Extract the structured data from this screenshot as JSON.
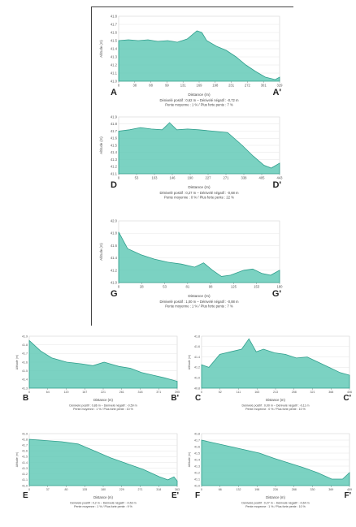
{
  "chart_data": [
    {
      "id": "A",
      "type": "area",
      "start_label": "A",
      "end_label": "A'",
      "xlabel": "Distance (m)",
      "ylabel": "Altitude (m)",
      "ylim": [
        41.0,
        41.8
      ],
      "yticks": [
        "41.8",
        "41.7",
        "41.6",
        "41.5",
        "41.4",
        "41.3",
        "41.2",
        "41.1",
        "41.0"
      ],
      "xticks": [
        "0",
        "38",
        "88",
        "99",
        "131",
        "169",
        "198",
        "231",
        "272",
        "301",
        "329"
      ],
      "x": [
        0,
        20,
        40,
        60,
        80,
        100,
        120,
        140,
        160,
        170,
        180,
        200,
        220,
        240,
        260,
        280,
        300,
        320,
        329
      ],
      "y": [
        41.5,
        41.51,
        41.5,
        41.51,
        41.49,
        41.5,
        41.48,
        41.52,
        41.62,
        41.6,
        41.5,
        41.43,
        41.38,
        41.3,
        41.2,
        41.12,
        41.05,
        41.02,
        41.05
      ],
      "caption_line1": "Dénivelé positif : 0,62 m – Dénivelé négatif : -0,72 m",
      "caption_line2": "Pente moyenne : 1 % / Plus forte pente : 7 %",
      "color": "#5ec8b5"
    },
    {
      "id": "D",
      "type": "area",
      "start_label": "D",
      "end_label": "D'",
      "xlabel": "Distance (m)",
      "ylabel": "Altitude (m)",
      "ylim": [
        41.1,
        41.9
      ],
      "yticks": [
        "41.9",
        "41.8",
        "41.7",
        "41.6",
        "41.5",
        "41.4",
        "41.3",
        "41.2",
        "41.1"
      ],
      "xticks": [
        "0",
        "53",
        "103",
        "146",
        "190",
        "227",
        "271",
        "338",
        "405",
        "443"
      ],
      "x": [
        0,
        30,
        60,
        90,
        120,
        140,
        160,
        190,
        220,
        260,
        300,
        340,
        370,
        400,
        420,
        443
      ],
      "y": [
        41.7,
        41.72,
        41.75,
        41.73,
        41.72,
        41.82,
        41.72,
        41.73,
        41.72,
        41.7,
        41.68,
        41.5,
        41.35,
        41.22,
        41.18,
        41.25
      ],
      "caption_line1": "Dénivelé positif : 0,27 m – Dénivelé négatif : -0,68 m",
      "caption_line2": "Pente moyenne : 0 % / Plus forte pente : 22 %",
      "color": "#5ec8b5"
    },
    {
      "id": "G",
      "type": "area",
      "start_label": "G",
      "end_label": "G'",
      "xlabel": "Distance (m)",
      "ylabel": "Altitude (m)",
      "ylim": [
        41.0,
        42.0
      ],
      "yticks": [
        "42.0",
        "41.8",
        "41.6",
        "41.4",
        "41.2",
        "41.0"
      ],
      "xticks": [
        "0",
        "28",
        "53",
        "81",
        "98",
        "125",
        "153",
        "180"
      ],
      "x": [
        0,
        10,
        25,
        40,
        55,
        70,
        85,
        95,
        105,
        115,
        125,
        140,
        150,
        160,
        170,
        180
      ],
      "y": [
        41.82,
        41.55,
        41.45,
        41.38,
        41.33,
        41.3,
        41.25,
        41.32,
        41.2,
        41.1,
        41.12,
        41.2,
        41.22,
        41.15,
        41.12,
        41.2
      ],
      "caption_line1": "Dénivelé positif : 1,00 m – Dénivelé négatif : -0,88 m",
      "caption_line2": "Pente moyenne : 1 % / Plus forte pente : 7 %",
      "color": "#5ec8b5"
    },
    {
      "id": "B",
      "type": "area",
      "start_label": "B",
      "end_label": "B'",
      "xlabel": "Distance (m)",
      "ylabel": "Altitude (m)",
      "ylim": [
        41.3,
        41.9
      ],
      "yticks": [
        "41.9",
        "41.8",
        "41.7",
        "41.6",
        "41.5",
        "41.4",
        "41.3"
      ],
      "xticks": [
        "0",
        "64",
        "120",
        "167",
        "221",
        "261",
        "318",
        "371",
        "395"
      ],
      "x": [
        0,
        30,
        60,
        100,
        140,
        170,
        200,
        240,
        270,
        300,
        330,
        360,
        395
      ],
      "y": [
        41.85,
        41.73,
        41.65,
        41.6,
        41.58,
        41.56,
        41.6,
        41.55,
        41.53,
        41.48,
        41.45,
        41.42,
        41.38
      ],
      "caption_line1": "Dénivelé positif : 0,86 m – Dénivelé négatif : -0,59 m",
      "caption_line2": "Pente moyenne : 1 % / Plus forte pente : 10 %",
      "color": "#5ec8b5"
    },
    {
      "id": "C",
      "type": "area",
      "start_label": "C",
      "end_label": "C'",
      "xlabel": "Distance (m)",
      "ylabel": "Altitude (m)",
      "ylim": [
        40.8,
        41.8
      ],
      "yticks": [
        "41.8",
        "41.6",
        "41.4",
        "41.2",
        "41.0",
        "40.8"
      ],
      "xticks": [
        "0",
        "52",
        "111",
        "163",
        "213",
        "258",
        "321",
        "368",
        "406"
      ],
      "x": [
        0,
        20,
        50,
        80,
        110,
        130,
        150,
        170,
        200,
        230,
        260,
        290,
        320,
        350,
        380,
        406
      ],
      "y": [
        41.25,
        41.2,
        41.45,
        41.5,
        41.55,
        41.75,
        41.5,
        41.55,
        41.48,
        41.45,
        41.38,
        41.4,
        41.3,
        41.2,
        41.1,
        41.05
      ],
      "caption_line1": "Dénivelé positif : 0,00 m – Dénivelé négatif : -0,11 m",
      "caption_line2": "Pente moyenne : 0 % / Plus forte pente : 10 %",
      "color": "#5ec8b5"
    },
    {
      "id": "E",
      "type": "area",
      "start_label": "E",
      "end_label": "E'",
      "xlabel": "Distance (m)",
      "ylabel": "Altitude (m)",
      "ylim": [
        41.0,
        41.9
      ],
      "yticks": [
        "41.9",
        "41.8",
        "41.7",
        "41.6",
        "41.5",
        "41.4",
        "41.3",
        "41.2",
        "41.1",
        "41.0"
      ],
      "xticks": [
        "0",
        "37",
        "80",
        "135",
        "180",
        "229",
        "271",
        "318",
        "363"
      ],
      "x": [
        0,
        40,
        80,
        120,
        160,
        200,
        240,
        280,
        320,
        340,
        355,
        363
      ],
      "y": [
        41.8,
        41.78,
        41.76,
        41.72,
        41.6,
        41.48,
        41.38,
        41.28,
        41.15,
        41.1,
        41.15,
        41.08
      ],
      "caption_line1": "Dénivelé positif : 0,2 m – Dénivelé négatif : -0,53 m",
      "caption_line2": "Pente moyenne : 1 % / Plus forte pente : 9 %",
      "color": "#5ec8b5"
    },
    {
      "id": "F",
      "type": "area",
      "start_label": "F",
      "end_label": "F'",
      "xlabel": "Distance (m)",
      "ylabel": "Altitude (m)",
      "ylim": [
        41.0,
        41.8
      ],
      "yticks": [
        "41.8",
        "41.7",
        "41.6",
        "41.5",
        "41.4",
        "41.3",
        "41.2",
        "41.1",
        "41.0"
      ],
      "xticks": [
        "0",
        "66",
        "132",
        "198",
        "226",
        "288",
        "330",
        "369",
        "409"
      ],
      "x": [
        0,
        40,
        80,
        120,
        160,
        200,
        240,
        280,
        320,
        360,
        390,
        409
      ],
      "y": [
        41.7,
        41.65,
        41.6,
        41.55,
        41.5,
        41.42,
        41.35,
        41.28,
        41.2,
        41.1,
        41.1,
        41.2
      ],
      "caption_line1": "Dénivelé positif : 0,27 m – Dénivelé négatif : -0,64 m",
      "caption_line2": "Pente moyenne : 1 % / Plus forte pente : 10 %",
      "color": "#5ec8b5"
    }
  ]
}
